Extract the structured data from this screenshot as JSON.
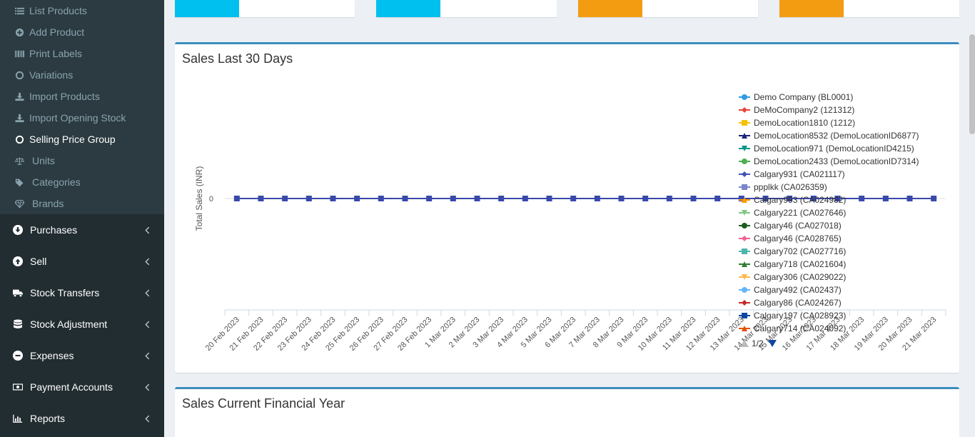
{
  "sidebar": {
    "sub_items": [
      {
        "label": "List Products",
        "icon": "list-icon"
      },
      {
        "label": "Add Product",
        "icon": "plus-circle-icon"
      },
      {
        "label": "Print Labels",
        "icon": "barcode-icon"
      },
      {
        "label": "Variations",
        "icon": "circle-icon"
      },
      {
        "label": "Import Products",
        "icon": "download-icon"
      },
      {
        "label": "Import Opening Stock",
        "icon": "download-icon"
      },
      {
        "label": "Selling Price Group",
        "icon": "circle-icon"
      },
      {
        "label": "Units",
        "icon": "balance-scale-icon"
      },
      {
        "label": "Categories",
        "icon": "tags-icon"
      },
      {
        "label": "Brands",
        "icon": "diamond-icon"
      }
    ],
    "active_sub": "Selling Price Group",
    "main_items": [
      {
        "label": "Purchases",
        "icon": "arrow-circle-down-icon"
      },
      {
        "label": "Sell",
        "icon": "arrow-circle-up-icon"
      },
      {
        "label": "Stock Transfers",
        "icon": "truck-icon"
      },
      {
        "label": "Stock Adjustment",
        "icon": "database-icon"
      },
      {
        "label": "Expenses",
        "icon": "minus-circle-icon"
      },
      {
        "label": "Payment Accounts",
        "icon": "money-icon"
      },
      {
        "label": "Reports",
        "icon": "bar-chart-icon"
      }
    ]
  },
  "info_boxes": [
    {
      "color": "#00c0ef"
    },
    {
      "color": "#00c0ef"
    },
    {
      "color": "#f39c12"
    },
    {
      "color": "#f39c12"
    }
  ],
  "panels": {
    "sales_30_days": {
      "title": "Sales Last 30 Days"
    },
    "sales_financial_year": {
      "title": "Sales Current Financial Year"
    }
  },
  "chart_data": {
    "type": "line",
    "title": "",
    "ylabel": "Total Sales (INR)",
    "xlabel": "",
    "y_ticks": [
      "0"
    ],
    "categories": [
      "20 Feb 2023",
      "21 Feb 2023",
      "22 Feb 2023",
      "23 Feb 2023",
      "24 Feb 2023",
      "25 Feb 2023",
      "26 Feb 2023",
      "27 Feb 2023",
      "28 Feb 2023",
      "1 Mar 2023",
      "2 Mar 2023",
      "3 Mar 2023",
      "4 Mar 2023",
      "5 Mar 2023",
      "6 Mar 2023",
      "7 Mar 2023",
      "8 Mar 2023",
      "9 Mar 2023",
      "10 Mar 2023",
      "11 Mar 2023",
      "12 Mar 2023",
      "13 Mar 2023",
      "14 Mar 2023",
      "15 Mar 2023",
      "16 Mar 2023",
      "17 Mar 2023",
      "18 Mar 2023",
      "19 Mar 2023",
      "20 Mar 2023",
      "21 Mar 2023"
    ],
    "values": [
      0,
      0,
      0,
      0,
      0,
      0,
      0,
      0,
      0,
      0,
      0,
      0,
      0,
      0,
      0,
      0,
      0,
      0,
      0,
      0,
      0,
      0,
      0,
      0,
      0,
      0,
      0,
      0,
      0,
      0
    ],
    "legend_placement": "right",
    "series": [
      {
        "name": "Demo Company (BL0001)",
        "color": "#2f9be8",
        "marker": "circle"
      },
      {
        "name": "DeMoCompany2 (121312)",
        "color": "#e8463b",
        "marker": "diamond"
      },
      {
        "name": "DemoLocation1810 (1212)",
        "color": "#f3c200",
        "marker": "square"
      },
      {
        "name": "DemoLocation8532 (DemoLocationID6877)",
        "color": "#1a237e",
        "marker": "triangle"
      },
      {
        "name": "DemoLocation971 (DemoLocationID4215)",
        "color": "#009688",
        "marker": "triangle-down"
      },
      {
        "name": "DemoLocation2433 (DemoLocationID7314)",
        "color": "#4caf50",
        "marker": "circle"
      },
      {
        "name": "Calgary931 (CA021117)",
        "color": "#3f51b5",
        "marker": "diamond"
      },
      {
        "name": "ppplkk (CA026359)",
        "color": "#7986cb",
        "marker": "square"
      },
      {
        "name": "Calgary993 (CA024982)",
        "color": "#ff9800",
        "marker": "triangle"
      },
      {
        "name": "Calgary221 (CA027646)",
        "color": "#81c784",
        "marker": "triangle-down"
      },
      {
        "name": "Calgary46 (CA027018)",
        "color": "#1b5e20",
        "marker": "circle"
      },
      {
        "name": "Calgary46 (CA028765)",
        "color": "#f06292",
        "marker": "diamond"
      },
      {
        "name": "Calgary702 (CA027716)",
        "color": "#4db6ac",
        "marker": "square"
      },
      {
        "name": "Calgary718 (CA021604)",
        "color": "#2e7d32",
        "marker": "triangle"
      },
      {
        "name": "Calgary306 (CA029022)",
        "color": "#ffb74d",
        "marker": "triangle-down"
      },
      {
        "name": "Calgary492 (CA02437)",
        "color": "#64b5f6",
        "marker": "circle"
      },
      {
        "name": "Calgary86 (CA024267)",
        "color": "#c62828",
        "marker": "diamond"
      },
      {
        "name": "Calgary197 (CA028923)",
        "color": "#0d47a1",
        "marker": "square"
      },
      {
        "name": "Calgary714 (CA024092)",
        "color": "#e65100",
        "marker": "triangle"
      }
    ],
    "legend_page": "1/2"
  }
}
